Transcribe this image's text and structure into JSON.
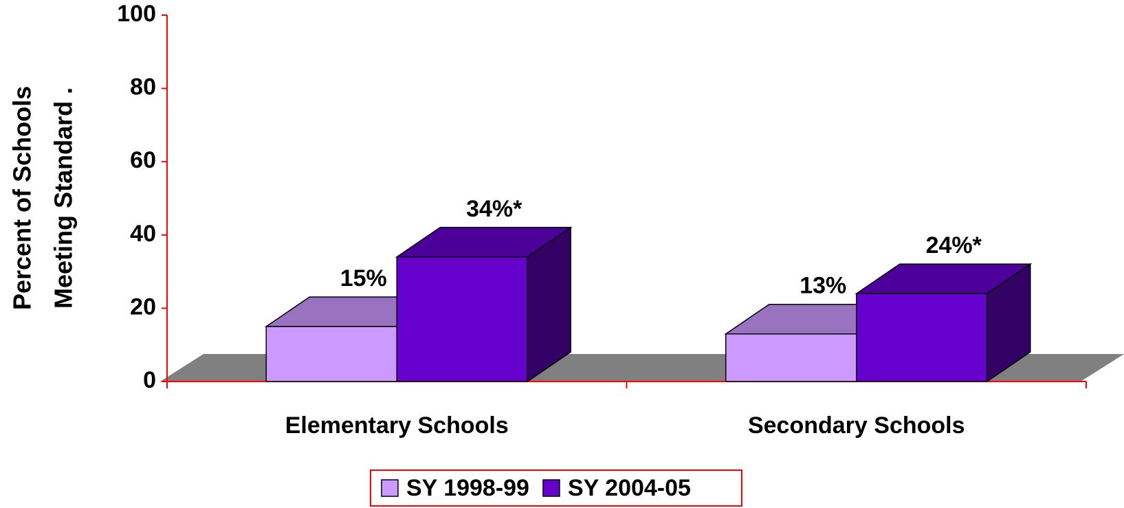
{
  "chart_data": {
    "type": "bar3d",
    "y_label": [
      "Percent of Schools",
      "Meeting Standard   ."
    ],
    "categories": [
      "Elementary Schools",
      "Secondary Schools"
    ],
    "series": [
      {
        "name": "SY 1998-99",
        "color": "#cc99ff",
        "values": [
          15,
          13
        ],
        "value_labels": [
          "15%",
          "13%"
        ]
      },
      {
        "name": "SY 2004-05",
        "color": "#6600cc",
        "values": [
          34,
          24
        ],
        "value_labels": [
          "34%*",
          "24%*"
        ]
      }
    ],
    "ylim": [
      0,
      100
    ],
    "yticks": [
      0,
      20,
      40,
      60,
      80,
      100
    ],
    "legend": "bottom"
  }
}
